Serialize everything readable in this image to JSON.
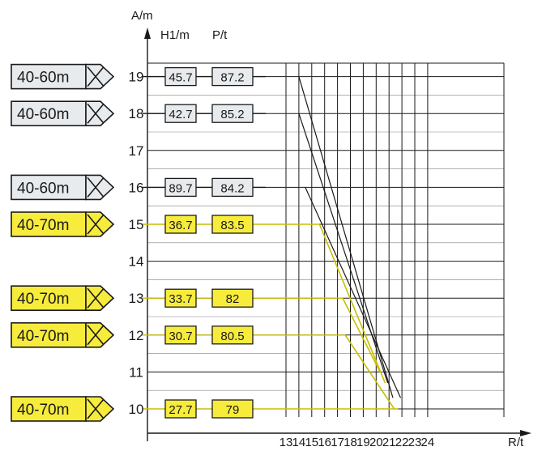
{
  "chart_data": {
    "type": "line",
    "y_axis_unit": "A/m",
    "header_col1": "H1/m",
    "header_col2": "P/t",
    "x_axis_unit": "R/t",
    "x_ticks": [
      13,
      14,
      15,
      16,
      17,
      18,
      19,
      20,
      21,
      22,
      23,
      24
    ],
    "xlim": [
      13,
      24
    ],
    "y_ticks": [
      10,
      11,
      12,
      13,
      14,
      15,
      16,
      17,
      18,
      19
    ],
    "ylim": [
      9.3,
      19.7
    ],
    "grid": true,
    "colors": {
      "gray_box": "#e8ebee",
      "yellow_box": "#f7ec3c",
      "yellow_line": "#c8be00",
      "ink": "#1a1a1a"
    },
    "rows": [
      {
        "level": 19,
        "tag": "40-60m",
        "h1": "45.7",
        "p": "87.2",
        "color": "gray"
      },
      {
        "level": 18,
        "tag": "40-60m",
        "h1": "42.7",
        "p": "85.2",
        "color": "gray"
      },
      {
        "level": 16,
        "tag": "40-60m",
        "h1": "89.7",
        "p": "84.2",
        "color": "gray"
      },
      {
        "level": 15,
        "tag": "40-70m",
        "h1": "36.7",
        "p": "83.5",
        "color": "yellow"
      },
      {
        "level": 13,
        "tag": "40-70m",
        "h1": "33.7",
        "p": "82",
        "color": "yellow"
      },
      {
        "level": 12,
        "tag": "40-70m",
        "h1": "30.7",
        "p": "80.5",
        "color": "yellow"
      },
      {
        "level": 10,
        "tag": "40-70m",
        "h1": "27.7",
        "p": "79",
        "color": "yellow"
      }
    ],
    "series": [
      {
        "color": "gray",
        "points": [
          [
            14,
            19
          ],
          [
            21.3,
            10.3
          ]
        ]
      },
      {
        "color": "gray",
        "points": [
          [
            14,
            18
          ],
          [
            20.9,
            10.7
          ]
        ]
      },
      {
        "color": "gray",
        "points": [
          [
            14.5,
            16
          ],
          [
            21.9,
            10.3
          ]
        ]
      },
      {
        "color": "yellow",
        "points": [
          [
            15.6,
            15
          ],
          [
            20.7,
            10.7
          ]
        ]
      },
      {
        "color": "yellow",
        "points": [
          [
            17.4,
            13
          ],
          [
            20.3,
            11
          ]
        ]
      },
      {
        "color": "yellow",
        "points": [
          [
            17.6,
            12
          ],
          [
            21.4,
            10
          ]
        ]
      },
      {
        "color": "yellow",
        "points": [
          [
            20.6,
            10
          ],
          [
            21.7,
            10
          ]
        ]
      }
    ]
  }
}
